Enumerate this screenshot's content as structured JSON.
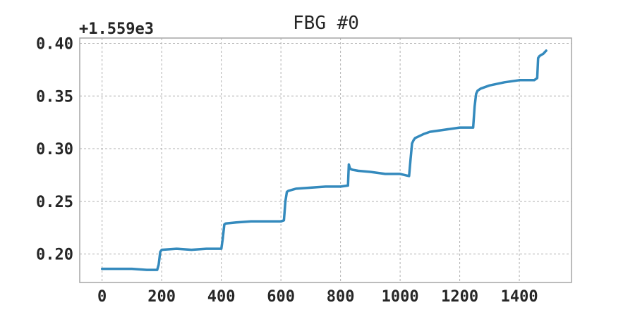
{
  "chart_data": {
    "type": "line",
    "title": "FBG #0",
    "xlabel": "",
    "ylabel": "",
    "y_offset_label": "+1.559e3",
    "xlim": [
      -75,
      1575
    ],
    "ylim": [
      0.173,
      0.405
    ],
    "xticks": [
      0,
      200,
      400,
      600,
      800,
      1000,
      1200,
      1400
    ],
    "xtick_labels": [
      "0",
      "200",
      "400",
      "600",
      "800",
      "1000",
      "1200",
      "1400"
    ],
    "yticks": [
      0.2,
      0.25,
      0.3,
      0.35,
      0.4
    ],
    "ytick_labels": [
      "0.20",
      "0.25",
      "0.30",
      "0.35",
      "0.40"
    ],
    "grid": true,
    "series": [
      {
        "color": "#348ABD",
        "x": [
          0,
          50,
          100,
          150,
          185,
          190,
          195,
          200,
          250,
          300,
          350,
          400,
          405,
          410,
          415,
          450,
          500,
          550,
          600,
          610,
          615,
          620,
          625,
          650,
          700,
          750,
          800,
          825,
          828,
          832,
          840,
          860,
          900,
          950,
          1000,
          1030,
          1035,
          1040,
          1045,
          1050,
          1080,
          1100,
          1150,
          1200,
          1245,
          1250,
          1255,
          1260,
          1270,
          1300,
          1350,
          1400,
          1450,
          1460,
          1463,
          1468,
          1480,
          1490
        ],
        "y": [
          0.186,
          0.186,
          0.186,
          0.185,
          0.185,
          0.19,
          0.202,
          0.204,
          0.205,
          0.204,
          0.205,
          0.205,
          0.215,
          0.228,
          0.229,
          0.23,
          0.231,
          0.231,
          0.231,
          0.232,
          0.25,
          0.259,
          0.26,
          0.262,
          0.263,
          0.264,
          0.264,
          0.265,
          0.285,
          0.281,
          0.28,
          0.279,
          0.278,
          0.276,
          0.276,
          0.274,
          0.29,
          0.305,
          0.308,
          0.31,
          0.314,
          0.316,
          0.318,
          0.32,
          0.32,
          0.34,
          0.352,
          0.355,
          0.357,
          0.36,
          0.363,
          0.365,
          0.365,
          0.367,
          0.386,
          0.388,
          0.39,
          0.393
        ]
      }
    ]
  }
}
